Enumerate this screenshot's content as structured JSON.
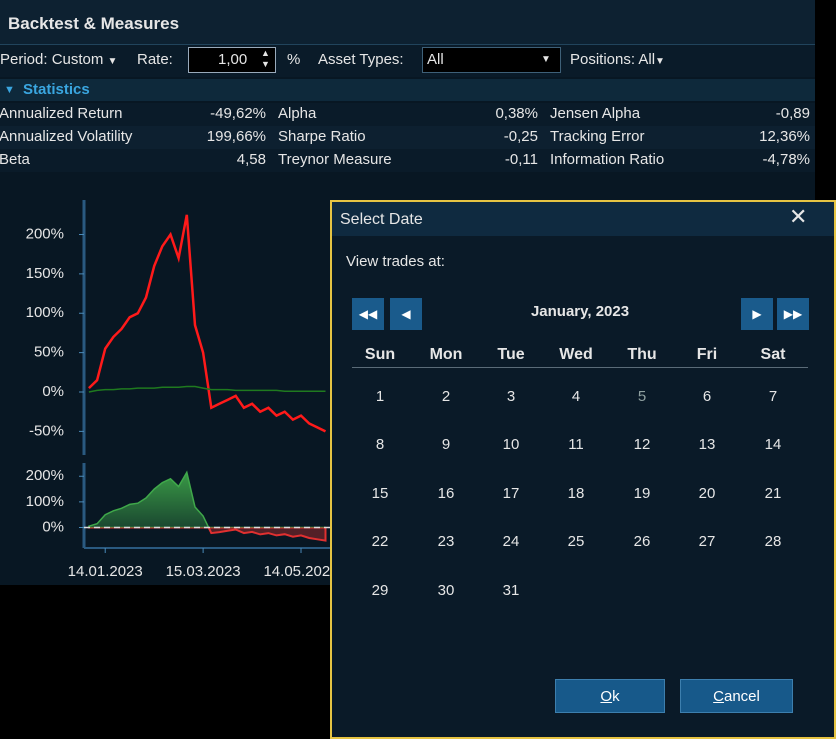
{
  "header": {
    "title": "Backtest & Measures"
  },
  "toolbar": {
    "period": "Period: Custom",
    "rate_label": "Rate:",
    "rate_value": "1,00",
    "rate_unit": "%",
    "asset_types_label": "Asset Types:",
    "asset_types_value": "All",
    "positions": "Positions: All"
  },
  "statistics": {
    "title": "Statistics",
    "rows": [
      [
        [
          "Annualized Return",
          "-49,62%"
        ],
        [
          "Alpha",
          "0,38%"
        ],
        [
          "Jensen Alpha",
          "-0,89"
        ]
      ],
      [
        [
          "Annualized Volatility",
          "199,66%"
        ],
        [
          "Sharpe Ratio",
          "-0,25"
        ],
        [
          "Tracking Error",
          "12,36%"
        ]
      ],
      [
        [
          "Beta",
          "4,58"
        ],
        [
          "Treynor Measure",
          "-0,11"
        ],
        [
          "Information Ratio",
          "-4,78%"
        ]
      ]
    ]
  },
  "chart_data": [
    {
      "type": "line",
      "x": [
        "04.01.2023",
        "09.01.2023",
        "14.01.2023",
        "19.01.2023",
        "24.01.2023",
        "29.01.2023",
        "03.02.2023",
        "08.02.2023",
        "13.02.2023",
        "18.02.2023",
        "23.02.2023",
        "28.02.2023",
        "05.03.2023",
        "10.03.2023",
        "15.03.2023",
        "20.03.2023",
        "25.03.2023",
        "30.03.2023",
        "04.04.2023",
        "09.04.2023",
        "14.04.2023",
        "19.04.2023",
        "24.04.2023",
        "29.04.2023",
        "04.05.2023",
        "09.05.2023",
        "14.05.2023",
        "19.05.2023",
        "24.05.2023",
        "29.05.2023"
      ],
      "series": [
        {
          "color": "#ff1a1a",
          "values": [
            5,
            15,
            55,
            70,
            80,
            95,
            100,
            120,
            160,
            185,
            200,
            170,
            225,
            85,
            50,
            -20,
            -15,
            -10,
            -5,
            -20,
            -15,
            -25,
            -20,
            -30,
            -25,
            -35,
            -30,
            -40,
            -45,
            -50
          ]
        },
        {
          "color": "#1f7a1f",
          "values": [
            0,
            2,
            3,
            3,
            4,
            4,
            5,
            5,
            5,
            6,
            6,
            6,
            7,
            7,
            5,
            3,
            3,
            3,
            2,
            2,
            2,
            2,
            2,
            2,
            1,
            1,
            1,
            1,
            1,
            1
          ]
        }
      ],
      "xlim": [
        "01.01.2023",
        "24.03.2024"
      ],
      "ylim": [
        -80,
        240
      ],
      "yticks": [
        {
          "value": -50,
          "label": "-50%"
        },
        {
          "value": 0,
          "label": "0%"
        },
        {
          "value": 50,
          "label": "50%"
        },
        {
          "value": 100,
          "label": "100%"
        },
        {
          "value": 150,
          "label": "150%"
        },
        {
          "value": 200,
          "label": "200%"
        }
      ]
    },
    {
      "type": "area",
      "x": [
        "04.01.2023",
        "09.01.2023",
        "14.01.2023",
        "19.01.2023",
        "24.01.2023",
        "29.01.2023",
        "03.02.2023",
        "08.02.2023",
        "13.02.2023",
        "18.02.2023",
        "23.02.2023",
        "28.02.2023",
        "05.03.2023",
        "10.03.2023",
        "15.03.2023",
        "20.03.2023",
        "25.03.2023",
        "30.03.2023",
        "04.04.2023",
        "09.04.2023",
        "14.04.2023",
        "19.04.2023",
        "24.04.2023",
        "29.04.2023",
        "04.05.2023",
        "09.05.2023",
        "14.05.2023",
        "19.05.2023",
        "24.05.2023",
        "29.05.2023"
      ],
      "values": [
        5,
        15,
        50,
        65,
        75,
        90,
        95,
        115,
        150,
        175,
        190,
        160,
        215,
        80,
        45,
        -22,
        -18,
        -13,
        -8,
        -22,
        -17,
        -27,
        -22,
        -31,
        -26,
        -36,
        -31,
        -41,
        -46,
        -51
      ],
      "positive_color": "#3fa84a",
      "negative_color": "#e03030",
      "xlim": [
        "01.01.2023",
        "24.03.2024"
      ],
      "ylim": [
        -80,
        240
      ],
      "yticks": [
        {
          "value": 0,
          "label": "0%"
        },
        {
          "value": 100,
          "label": "100%"
        },
        {
          "value": 200,
          "label": "200%"
        }
      ],
      "xticks": [
        "14.01.2023",
        "15.03.2023",
        "14.05.2023"
      ]
    }
  ],
  "dialog": {
    "title": "Select Date",
    "prompt": "View trades at:",
    "month": "January, 2023",
    "weekdays": [
      "Sun",
      "Mon",
      "Tue",
      "Wed",
      "Thu",
      "Fri",
      "Sat"
    ],
    "weeks": [
      [
        1,
        2,
        3,
        4,
        5,
        6,
        7
      ],
      [
        8,
        9,
        10,
        11,
        12,
        13,
        14
      ],
      [
        15,
        16,
        17,
        18,
        19,
        20,
        21
      ],
      [
        22,
        23,
        24,
        25,
        26,
        27,
        28
      ],
      [
        29,
        30,
        31
      ]
    ],
    "buttons": [
      "Ok",
      "Cancel"
    ]
  }
}
